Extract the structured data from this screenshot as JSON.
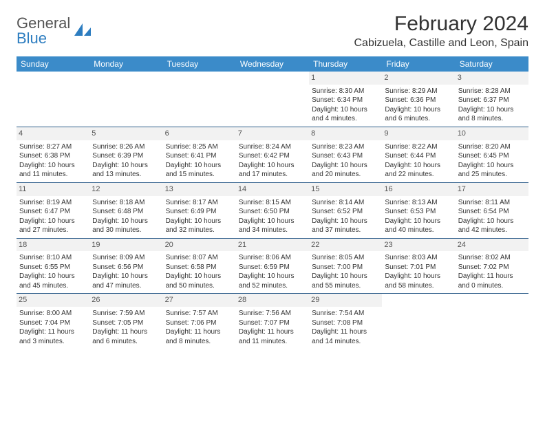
{
  "logo": {
    "text1": "General",
    "text2": "Blue"
  },
  "title": "February 2024",
  "location": "Cabizuela, Castille and Leon, Spain",
  "colors": {
    "header_bg": "#3b8bc9",
    "week_border": "#2d5d8a",
    "daynum_bg": "#f2f2f2",
    "text": "#333333",
    "logo_gray": "#555555",
    "logo_blue": "#2d7dc0"
  },
  "dayheads": [
    "Sunday",
    "Monday",
    "Tuesday",
    "Wednesday",
    "Thursday",
    "Friday",
    "Saturday"
  ],
  "weeks": [
    [
      {
        "n": "",
        "sr": "",
        "ss": "",
        "d1": "",
        "d2": "",
        "empty": true
      },
      {
        "n": "",
        "sr": "",
        "ss": "",
        "d1": "",
        "d2": "",
        "empty": true
      },
      {
        "n": "",
        "sr": "",
        "ss": "",
        "d1": "",
        "d2": "",
        "empty": true
      },
      {
        "n": "",
        "sr": "",
        "ss": "",
        "d1": "",
        "d2": "",
        "empty": true
      },
      {
        "n": "1",
        "sr": "Sunrise: 8:30 AM",
        "ss": "Sunset: 6:34 PM",
        "d1": "Daylight: 10 hours",
        "d2": "and 4 minutes."
      },
      {
        "n": "2",
        "sr": "Sunrise: 8:29 AM",
        "ss": "Sunset: 6:36 PM",
        "d1": "Daylight: 10 hours",
        "d2": "and 6 minutes."
      },
      {
        "n": "3",
        "sr": "Sunrise: 8:28 AM",
        "ss": "Sunset: 6:37 PM",
        "d1": "Daylight: 10 hours",
        "d2": "and 8 minutes."
      }
    ],
    [
      {
        "n": "4",
        "sr": "Sunrise: 8:27 AM",
        "ss": "Sunset: 6:38 PM",
        "d1": "Daylight: 10 hours",
        "d2": "and 11 minutes."
      },
      {
        "n": "5",
        "sr": "Sunrise: 8:26 AM",
        "ss": "Sunset: 6:39 PM",
        "d1": "Daylight: 10 hours",
        "d2": "and 13 minutes."
      },
      {
        "n": "6",
        "sr": "Sunrise: 8:25 AM",
        "ss": "Sunset: 6:41 PM",
        "d1": "Daylight: 10 hours",
        "d2": "and 15 minutes."
      },
      {
        "n": "7",
        "sr": "Sunrise: 8:24 AM",
        "ss": "Sunset: 6:42 PM",
        "d1": "Daylight: 10 hours",
        "d2": "and 17 minutes."
      },
      {
        "n": "8",
        "sr": "Sunrise: 8:23 AM",
        "ss": "Sunset: 6:43 PM",
        "d1": "Daylight: 10 hours",
        "d2": "and 20 minutes."
      },
      {
        "n": "9",
        "sr": "Sunrise: 8:22 AM",
        "ss": "Sunset: 6:44 PM",
        "d1": "Daylight: 10 hours",
        "d2": "and 22 minutes."
      },
      {
        "n": "10",
        "sr": "Sunrise: 8:20 AM",
        "ss": "Sunset: 6:45 PM",
        "d1": "Daylight: 10 hours",
        "d2": "and 25 minutes."
      }
    ],
    [
      {
        "n": "11",
        "sr": "Sunrise: 8:19 AM",
        "ss": "Sunset: 6:47 PM",
        "d1": "Daylight: 10 hours",
        "d2": "and 27 minutes."
      },
      {
        "n": "12",
        "sr": "Sunrise: 8:18 AM",
        "ss": "Sunset: 6:48 PM",
        "d1": "Daylight: 10 hours",
        "d2": "and 30 minutes."
      },
      {
        "n": "13",
        "sr": "Sunrise: 8:17 AM",
        "ss": "Sunset: 6:49 PM",
        "d1": "Daylight: 10 hours",
        "d2": "and 32 minutes."
      },
      {
        "n": "14",
        "sr": "Sunrise: 8:15 AM",
        "ss": "Sunset: 6:50 PM",
        "d1": "Daylight: 10 hours",
        "d2": "and 34 minutes."
      },
      {
        "n": "15",
        "sr": "Sunrise: 8:14 AM",
        "ss": "Sunset: 6:52 PM",
        "d1": "Daylight: 10 hours",
        "d2": "and 37 minutes."
      },
      {
        "n": "16",
        "sr": "Sunrise: 8:13 AM",
        "ss": "Sunset: 6:53 PM",
        "d1": "Daylight: 10 hours",
        "d2": "and 40 minutes."
      },
      {
        "n": "17",
        "sr": "Sunrise: 8:11 AM",
        "ss": "Sunset: 6:54 PM",
        "d1": "Daylight: 10 hours",
        "d2": "and 42 minutes."
      }
    ],
    [
      {
        "n": "18",
        "sr": "Sunrise: 8:10 AM",
        "ss": "Sunset: 6:55 PM",
        "d1": "Daylight: 10 hours",
        "d2": "and 45 minutes."
      },
      {
        "n": "19",
        "sr": "Sunrise: 8:09 AM",
        "ss": "Sunset: 6:56 PM",
        "d1": "Daylight: 10 hours",
        "d2": "and 47 minutes."
      },
      {
        "n": "20",
        "sr": "Sunrise: 8:07 AM",
        "ss": "Sunset: 6:58 PM",
        "d1": "Daylight: 10 hours",
        "d2": "and 50 minutes."
      },
      {
        "n": "21",
        "sr": "Sunrise: 8:06 AM",
        "ss": "Sunset: 6:59 PM",
        "d1": "Daylight: 10 hours",
        "d2": "and 52 minutes."
      },
      {
        "n": "22",
        "sr": "Sunrise: 8:05 AM",
        "ss": "Sunset: 7:00 PM",
        "d1": "Daylight: 10 hours",
        "d2": "and 55 minutes."
      },
      {
        "n": "23",
        "sr": "Sunrise: 8:03 AM",
        "ss": "Sunset: 7:01 PM",
        "d1": "Daylight: 10 hours",
        "d2": "and 58 minutes."
      },
      {
        "n": "24",
        "sr": "Sunrise: 8:02 AM",
        "ss": "Sunset: 7:02 PM",
        "d1": "Daylight: 11 hours",
        "d2": "and 0 minutes."
      }
    ],
    [
      {
        "n": "25",
        "sr": "Sunrise: 8:00 AM",
        "ss": "Sunset: 7:04 PM",
        "d1": "Daylight: 11 hours",
        "d2": "and 3 minutes."
      },
      {
        "n": "26",
        "sr": "Sunrise: 7:59 AM",
        "ss": "Sunset: 7:05 PM",
        "d1": "Daylight: 11 hours",
        "d2": "and 6 minutes."
      },
      {
        "n": "27",
        "sr": "Sunrise: 7:57 AM",
        "ss": "Sunset: 7:06 PM",
        "d1": "Daylight: 11 hours",
        "d2": "and 8 minutes."
      },
      {
        "n": "28",
        "sr": "Sunrise: 7:56 AM",
        "ss": "Sunset: 7:07 PM",
        "d1": "Daylight: 11 hours",
        "d2": "and 11 minutes."
      },
      {
        "n": "29",
        "sr": "Sunrise: 7:54 AM",
        "ss": "Sunset: 7:08 PM",
        "d1": "Daylight: 11 hours",
        "d2": "and 14 minutes."
      },
      {
        "n": "",
        "sr": "",
        "ss": "",
        "d1": "",
        "d2": "",
        "empty": true
      },
      {
        "n": "",
        "sr": "",
        "ss": "",
        "d1": "",
        "d2": "",
        "empty": true
      }
    ]
  ]
}
